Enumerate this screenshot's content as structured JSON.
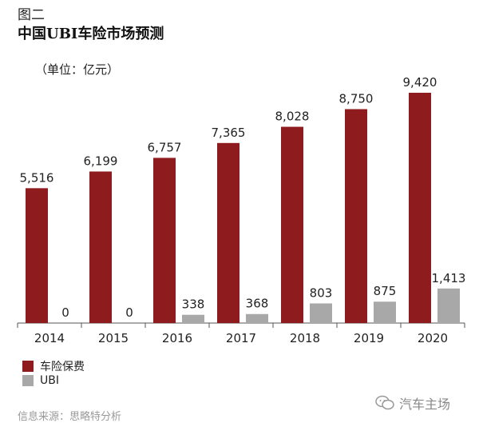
{
  "figure_label": "图二",
  "title": "中国UBI车险市场预测",
  "unit": "（单位：亿元）",
  "source": "信息来源：思略特分析",
  "watermark": "汽车主场",
  "colors": {
    "premium": "#8e1b1d",
    "ubi": "#a8a8a8",
    "axis": "#555555",
    "text": "#222222"
  },
  "chart_data": {
    "type": "bar",
    "title": "中国UBI车险市场预测",
    "xlabel": "",
    "ylabel": "",
    "ylim": [
      0,
      10000
    ],
    "grid": false,
    "legend_position": "bottom-left",
    "categories": [
      "2014",
      "2015",
      "2016",
      "2017",
      "2018",
      "2019",
      "2020"
    ],
    "series": [
      {
        "name": "车险保费",
        "values": [
          5516,
          6199,
          6757,
          7365,
          8028,
          8750,
          9420
        ],
        "labels": [
          "5,516",
          "6,199",
          "6,757",
          "7,365",
          "8,028",
          "8,750",
          "9,420"
        ],
        "color": "#8e1b1d"
      },
      {
        "name": "UBI",
        "values": [
          0,
          0,
          338,
          368,
          803,
          875,
          1413
        ],
        "labels": [
          "0",
          "0",
          "338",
          "368",
          "803",
          "875",
          "1,413"
        ],
        "color": "#a8a8a8"
      }
    ]
  }
}
